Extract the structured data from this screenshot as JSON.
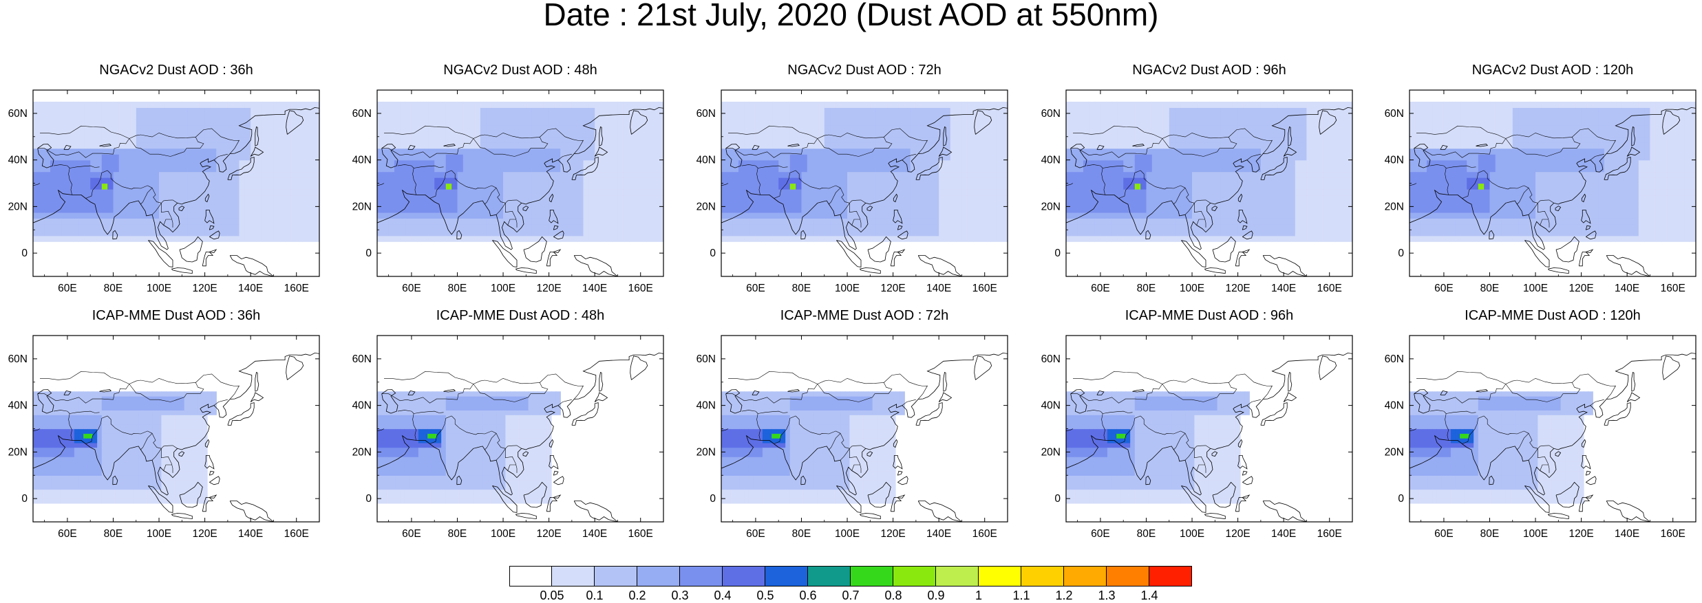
{
  "title": "Date : 21st July, 2020 (Dust AOD at 550nm)",
  "panels": [
    {
      "title": "NGACv2 Dust AOD : 36h",
      "model": "NGAC",
      "lead": 36
    },
    {
      "title": "NGACv2 Dust AOD : 48h",
      "model": "NGAC",
      "lead": 48
    },
    {
      "title": "NGACv2 Dust AOD : 72h",
      "model": "NGAC",
      "lead": 72
    },
    {
      "title": "NGACv2 Dust AOD : 96h",
      "model": "NGAC",
      "lead": 96
    },
    {
      "title": "NGACv2 Dust AOD : 120h",
      "model": "NGAC",
      "lead": 120
    },
    {
      "title": "ICAP-MME Dust AOD : 36h",
      "model": "ICAP",
      "lead": 36
    },
    {
      "title": "ICAP-MME Dust AOD : 48h",
      "model": "ICAP",
      "lead": 48
    },
    {
      "title": "ICAP-MME Dust AOD : 72h",
      "model": "ICAP",
      "lead": 72
    },
    {
      "title": "ICAP-MME Dust AOD : 96h",
      "model": "ICAP",
      "lead": 96
    },
    {
      "title": "ICAP-MME Dust AOD : 120h",
      "model": "ICAP",
      "lead": 120
    }
  ],
  "map": {
    "lon_range": [
      45,
      170
    ],
    "lat_range": [
      -10,
      70
    ],
    "lon_ticks": [
      "60E",
      "80E",
      "100E",
      "120E",
      "140E",
      "160E"
    ],
    "lat_ticks": [
      "0",
      "20N",
      "40N",
      "60N"
    ]
  },
  "colorbar": {
    "labels": [
      "0.05",
      "0.1",
      "0.2",
      "0.3",
      "0.4",
      "0.5",
      "0.6",
      "0.7",
      "0.8",
      "0.9",
      "1",
      "1.1",
      "1.2",
      "1.3",
      "1.4"
    ],
    "colors": [
      "#ffffff",
      "#d4ddf9",
      "#b3c3f6",
      "#96acf3",
      "#7a90ee",
      "#5e6fe6",
      "#1c63dc",
      "#109a8c",
      "#36d81c",
      "#8ae80e",
      "#bdee4e",
      "#ffff00",
      "#ffd000",
      "#ffaa00",
      "#ff8000",
      "#ff2000"
    ]
  }
}
